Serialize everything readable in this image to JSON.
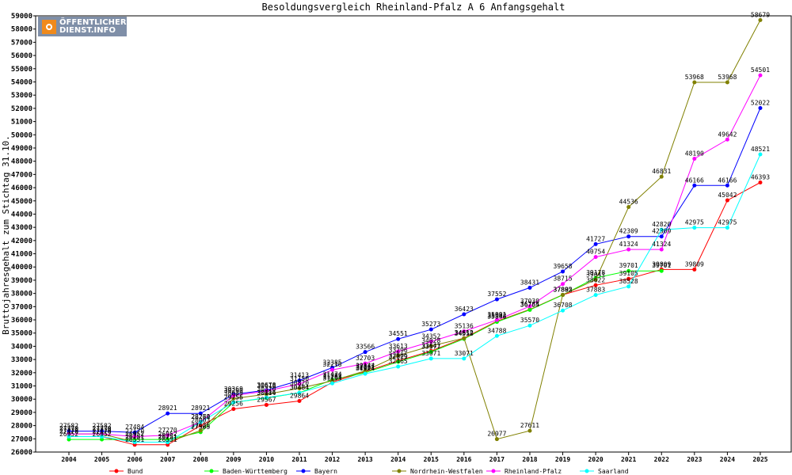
{
  "logo": {
    "line1": "ÖFFENTLICHER",
    "line2": "DIENST.INFO"
  },
  "chart_data": {
    "type": "line",
    "title": "Besoldungsvergleich Rheinland-Pfalz A 6 Anfangsgehalt",
    "xlabel": "",
    "ylabel": "Bruttojahresgehalt zum Stichtag 31.10.",
    "ylim": [
      26000,
      59000
    ],
    "ytick_step": 1000,
    "grid": false,
    "legend_position": "bottom",
    "x": [
      "2004",
      "2005",
      "2006",
      "2007",
      "2008",
      "2009",
      "2010",
      "2011",
      "2012",
      "2013",
      "2014",
      "2015",
      "2016",
      "2017",
      "2018",
      "2019",
      "2020",
      "2021",
      "2022",
      "2023",
      "2024",
      "2025"
    ],
    "series": [
      {
        "name": "Bund",
        "color": "#ff0000",
        "values": [
          27170,
          27170,
          26551,
          26551,
          28003,
          29256,
          29567,
          29864,
          31283,
          32077,
          32906,
          33641,
          34612,
          35902,
          36784,
          37892,
          38622,
          39105,
          39809,
          39809,
          45042,
          46393
        ],
        "labels": [
          "27170",
          "27170",
          "26551",
          "26551",
          "28003",
          "29256",
          "29567",
          "29864",
          "31283",
          "32077",
          "32906",
          "33641",
          "34612",
          "35902",
          "36784",
          "37892",
          "38622",
          "39105",
          "39809",
          "39809",
          "45042",
          "46393"
        ]
      },
      {
        "name": "Baden-Württemberg",
        "color": "#00ff00",
        "values": [
          26952,
          26952,
          26952,
          26952,
          27505,
          29755,
          30084,
          30484,
          31474,
          32001,
          32829,
          33577,
          34558,
          35846,
          36755,
          37885,
          39178,
          39701,
          39701,
          null,
          null,
          null
        ],
        "labels": [
          "26952",
          "26952",
          "26952",
          "26952",
          "27505",
          "29755",
          "30084",
          "30484",
          "31474",
          "32001",
          "32829",
          "33577",
          "34558",
          "35846",
          "36755",
          "37885",
          "39178",
          "39701",
          "39701",
          "",
          "",
          ""
        ]
      },
      {
        "name": "Bayern",
        "color": "#0000ff",
        "values": [
          27582,
          27582,
          27484,
          28921,
          28921,
          30369,
          30678,
          31413,
          32385,
          33566,
          34551,
          35273,
          36423,
          37552,
          38431,
          39658,
          41727,
          42309,
          42309,
          46166,
          46166,
          52022
        ],
        "labels": [
          "27582",
          "27582",
          "27484",
          "28921",
          "28921",
          "30369",
          "30678",
          "31413",
          "32385",
          "33566",
          "34551",
          "35273",
          "36423",
          "37552",
          "38431",
          "39658",
          "41727",
          "42309",
          "42309",
          "46166",
          "46166",
          "52022"
        ]
      },
      {
        "name": "Nordrhein-Westfalen",
        "color": "#808000",
        "values": [
          27370,
          27370,
          26751,
          26751,
          27625,
          30049,
          30370,
          30820,
          31382,
          32144,
          33296,
          34028,
          34612,
          26977,
          27611,
          37892,
          39041,
          44536,
          46831,
          53968,
          53968,
          58679
        ],
        "labels": [
          "27370",
          "27370",
          "26751",
          "26751",
          "27625",
          "30049",
          "30370",
          "30820",
          "31382",
          "32144",
          "33296",
          "34028",
          "34612",
          "26977",
          "27611",
          "37892",
          "39041",
          "44536",
          "46831",
          "53968",
          "53968",
          "58679"
        ]
      },
      {
        "name": "Rheinland-Pfalz",
        "color": "#ff00ff",
        "values": [
          27370,
          27370,
          27170,
          27270,
          28270,
          30260,
          30618,
          31150,
          32218,
          32703,
          33613,
          34352,
          35136,
          35991,
          37030,
          38715,
          40754,
          41324,
          41324,
          48190,
          49642,
          54501
        ],
        "labels": [
          "27370",
          "27370",
          "27170",
          "27270",
          "28270",
          "30260",
          "30618",
          "31150",
          "32218",
          "32703",
          "33613",
          "34352",
          "35136",
          "35991",
          "37030",
          "38715",
          "40754",
          "41324",
          "41324",
          "48190",
          "49642",
          "54501"
        ]
      },
      {
        "name": "Saarland",
        "color": "#00ffff",
        "values": [
          27170,
          27170,
          26751,
          26751,
          28261,
          29756,
          30116,
          30484,
          31193,
          31924,
          32465,
          33071,
          33071,
          34788,
          35570,
          36708,
          37883,
          38528,
          42820,
          42975,
          42975,
          48521
        ],
        "labels": [
          "27170",
          "27170",
          "26751",
          "26751",
          "28261",
          "29756",
          "30116",
          "30484",
          "31193",
          "31924",
          "32465",
          "33071",
          "33071",
          "34788",
          "35570",
          "36708",
          "37883",
          "38528",
          "42820",
          "42975",
          "42975",
          "48521"
        ]
      }
    ]
  }
}
